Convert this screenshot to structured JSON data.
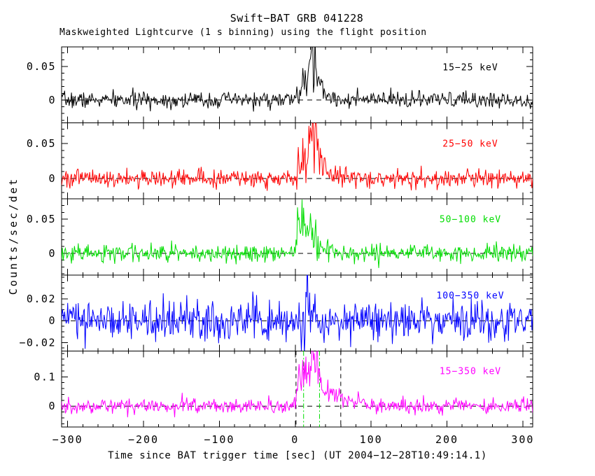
{
  "title": "Swift−BAT GRB 041228",
  "subtitle": "Maskweighted Lightcurve (1 s binning) using the flight position",
  "chart_data": {
    "type": "line",
    "layout": "5 vertically stacked panels sharing one x axis, frame boxes with inward ticks, grid off",
    "title": "Swift−BAT GRB 041228",
    "subtitle": "Maskweighted Lightcurve (1 s binning) using the flight position",
    "xlabel": "Time since BAT trigger time [sec] (UT 2004−12−28T10:49:14.1)",
    "ylabel": "Counts/sec/det",
    "bin_seconds": 1,
    "x_range": [
      -308,
      313
    ],
    "x_major_ticks": [
      {
        "v": -300,
        "label": "−300"
      },
      {
        "v": -200,
        "label": "−200"
      },
      {
        "v": -100,
        "label": "−100"
      },
      {
        "v": 0,
        "label": "0"
      },
      {
        "v": 100,
        "label": "100"
      },
      {
        "v": 200,
        "label": "200"
      },
      {
        "v": 300,
        "label": "300"
      }
    ],
    "x_minor_step": 20,
    "baseline": {
      "value": 0,
      "style": "dashed",
      "color": "#000000"
    },
    "series": [
      {
        "name": "band-15-25",
        "label": "15−25 keV",
        "color": "#000000",
        "ylim": [
          -0.034,
          0.079
        ],
        "yticks": [
          {
            "v": 0.05,
            "label": "0.05"
          },
          {
            "v": 0,
            "label": "0"
          }
        ],
        "y_minor_step": 0.01,
        "noise_sigma": 0.006,
        "seed": 7,
        "burst_profile": [
          [
            -4,
            0
          ],
          [
            0,
            0.004
          ],
          [
            4,
            0.01
          ],
          [
            8,
            0.014
          ],
          [
            12,
            0.022
          ],
          [
            15,
            0.03
          ],
          [
            18,
            0.04
          ],
          [
            20,
            0.05
          ],
          [
            22,
            0.06
          ],
          [
            24,
            0.058
          ],
          [
            26,
            0.048
          ],
          [
            28,
            0.05
          ],
          [
            30,
            0.04
          ],
          [
            33,
            0.026
          ],
          [
            36,
            0.014
          ],
          [
            40,
            0.008
          ],
          [
            48,
            0.004
          ],
          [
            60,
            0.002
          ],
          [
            75,
            0
          ]
        ]
      },
      {
        "name": "band-25-50",
        "label": "25−50 keV",
        "color": "#ff0000",
        "ylim": [
          -0.029,
          0.079
        ],
        "yticks": [
          {
            "v": 0.05,
            "label": "0.05"
          },
          {
            "v": 0,
            "label": "0"
          }
        ],
        "y_minor_step": 0.01,
        "noise_sigma": 0.0065,
        "seed": 101,
        "burst_profile": [
          [
            -3,
            0
          ],
          [
            0,
            0.012
          ],
          [
            4,
            0.024
          ],
          [
            8,
            0.028
          ],
          [
            12,
            0.024
          ],
          [
            15,
            0.03
          ],
          [
            18,
            0.046
          ],
          [
            21,
            0.06
          ],
          [
            23,
            0.056
          ],
          [
            25,
            0.048
          ],
          [
            27,
            0.058
          ],
          [
            29,
            0.05
          ],
          [
            32,
            0.034
          ],
          [
            35,
            0.022
          ],
          [
            40,
            0.014
          ],
          [
            46,
            0.009
          ],
          [
            55,
            0.005
          ],
          [
            70,
            0
          ]
        ]
      },
      {
        "name": "band-50-100",
        "label": "50−100 keV",
        "color": "#00dd00",
        "ylim": [
          -0.0316,
          0.0796
        ],
        "yticks": [
          {
            "v": 0.05,
            "label": "0.05"
          },
          {
            "v": 0,
            "label": "0"
          }
        ],
        "y_minor_step": 0.01,
        "noise_sigma": 0.0065,
        "seed": 202,
        "burst_profile": [
          [
            -2,
            0
          ],
          [
            0,
            0.008
          ],
          [
            2,
            0.02
          ],
          [
            4,
            0.048
          ],
          [
            6,
            0.056
          ],
          [
            8,
            0.05
          ],
          [
            11,
            0.04
          ],
          [
            14,
            0.046
          ],
          [
            17,
            0.036
          ],
          [
            20,
            0.044
          ],
          [
            23,
            0.04
          ],
          [
            26,
            0.034
          ],
          [
            28,
            0.024
          ],
          [
            31,
            0.012
          ],
          [
            35,
            0.006
          ],
          [
            40,
            0.004
          ],
          [
            44,
            0.012
          ],
          [
            48,
            0.006
          ],
          [
            55,
            0.002
          ],
          [
            68,
            0
          ]
        ]
      },
      {
        "name": "band-100-350",
        "label": "100−350 keV",
        "color": "#0000ff",
        "ylim": [
          -0.0277,
          0.042
        ],
        "yticks": [
          {
            "v": 0.02,
            "label": "0.02"
          },
          {
            "v": 0,
            "label": "0"
          },
          {
            "v": -0.02,
            "label": "−0.02"
          }
        ],
        "y_minor_step": 0.005,
        "noise_sigma": 0.009,
        "seed": 303,
        "burst_profile": [
          [
            0,
            0
          ],
          [
            4,
            0.003
          ],
          [
            8,
            0.005
          ],
          [
            12,
            0.008
          ],
          [
            15,
            0.012
          ],
          [
            18,
            0.016
          ],
          [
            20,
            0.011
          ],
          [
            24,
            0.007
          ],
          [
            28,
            0.004
          ],
          [
            34,
            0.002
          ],
          [
            42,
            0
          ]
        ]
      },
      {
        "name": "band-15-350",
        "label": "15−350 keV",
        "color": "#ff00ff",
        "ylim": [
          -0.071,
          0.188
        ],
        "yticks": [
          {
            "v": 0.1,
            "label": "0.1"
          },
          {
            "v": 0,
            "label": "0"
          }
        ],
        "y_minor_step": 0.02,
        "noise_sigma": 0.013,
        "seed": 404,
        "burst_profile": [
          [
            -3,
            0
          ],
          [
            0,
            0.018
          ],
          [
            2,
            0.05
          ],
          [
            4,
            0.08
          ],
          [
            6,
            0.1
          ],
          [
            8,
            0.113
          ],
          [
            10,
            0.108
          ],
          [
            13,
            0.096
          ],
          [
            16,
            0.092
          ],
          [
            19,
            0.105
          ],
          [
            22,
            0.125
          ],
          [
            24,
            0.148
          ],
          [
            26,
            0.162
          ],
          [
            28,
            0.152
          ],
          [
            30,
            0.128
          ],
          [
            33,
            0.092
          ],
          [
            36,
            0.066
          ],
          [
            40,
            0.05
          ],
          [
            45,
            0.038
          ],
          [
            50,
            0.03
          ],
          [
            56,
            0.026
          ],
          [
            61,
            0.032
          ],
          [
            66,
            0.022
          ],
          [
            72,
            0.014
          ],
          [
            80,
            0.008
          ],
          [
            95,
            0.003
          ],
          [
            110,
            0
          ]
        ]
      }
    ],
    "annotations": {
      "panel": "15−350 keV",
      "vlines": [
        {
          "t": 1,
          "color": "#000000",
          "style": "dashed"
        },
        {
          "t": 11,
          "color": "#00dd00",
          "style": "dash-dot"
        },
        {
          "t": 32,
          "color": "#00dd00",
          "style": "dash-dot"
        },
        {
          "t": 60,
          "color": "#000000",
          "style": "dashed"
        }
      ]
    }
  }
}
